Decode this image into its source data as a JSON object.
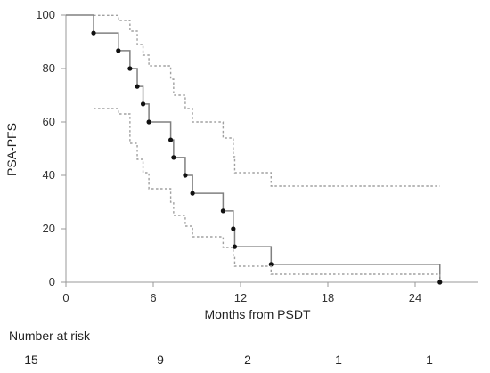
{
  "chart_data": {
    "type": "line",
    "title": "",
    "xlabel": "Months from PSDT",
    "ylabel": "PSA-PFS",
    "xlim": [
      0,
      27
    ],
    "ylim": [
      0,
      100
    ],
    "x_ticks": [
      0,
      6,
      12,
      18,
      24
    ],
    "y_ticks": [
      0,
      20,
      40,
      60,
      80,
      100
    ],
    "grid": false,
    "legend": "none",
    "series": [
      {
        "style": "step-solid",
        "color": "#808080",
        "x": [
          0,
          1.9,
          3.6,
          4.4,
          4.9,
          5.3,
          5.7,
          7.2,
          7.4,
          8.2,
          8.7,
          10.8,
          11.5,
          11.6,
          14.1,
          25.7
        ],
        "y": [
          100,
          93.3,
          86.7,
          80,
          73.3,
          66.7,
          60,
          53.3,
          46.7,
          40,
          33.3,
          26.7,
          20,
          13.3,
          6.7,
          0
        ],
        "censor_points": [
          [
            1.9,
            93.3
          ],
          [
            3.6,
            86.7
          ],
          [
            4.4,
            80
          ],
          [
            4.9,
            73.3
          ],
          [
            5.3,
            66.7
          ],
          [
            5.7,
            60
          ],
          [
            7.2,
            53.3
          ],
          [
            7.4,
            46.7
          ],
          [
            8.2,
            40
          ],
          [
            8.7,
            33.3
          ],
          [
            10.8,
            26.7
          ],
          [
            11.5,
            20
          ],
          [
            11.6,
            13.3
          ],
          [
            14.1,
            6.7
          ],
          [
            25.7,
            0
          ]
        ]
      },
      {
        "style": "step-dotted",
        "color": "#a0a0a0",
        "x": [
          1.9,
          3.6,
          4.4,
          4.9,
          5.3,
          5.7,
          7.2,
          7.4,
          8.2,
          8.7,
          10.8,
          11.5,
          11.6,
          14.1,
          25.7
        ],
        "y": [
          99.9,
          98,
          94,
          89,
          85,
          81,
          76,
          70,
          65,
          60,
          54,
          47,
          41,
          36,
          36
        ]
      },
      {
        "style": "step-dotted",
        "color": "#a0a0a0",
        "x": [
          1.9,
          3.6,
          4.4,
          4.9,
          5.3,
          5.7,
          7.2,
          7.4,
          8.2,
          8.7,
          10.8,
          11.5,
          11.6,
          14.1,
          25.7
        ],
        "y": [
          65,
          63,
          52,
          46,
          41,
          35,
          30,
          25,
          21,
          17,
          13,
          10,
          6,
          3,
          1
        ]
      }
    ]
  },
  "risk_table": {
    "title": "Number at risk",
    "values": [
      "15",
      "9",
      "2",
      "1",
      "1"
    ]
  }
}
